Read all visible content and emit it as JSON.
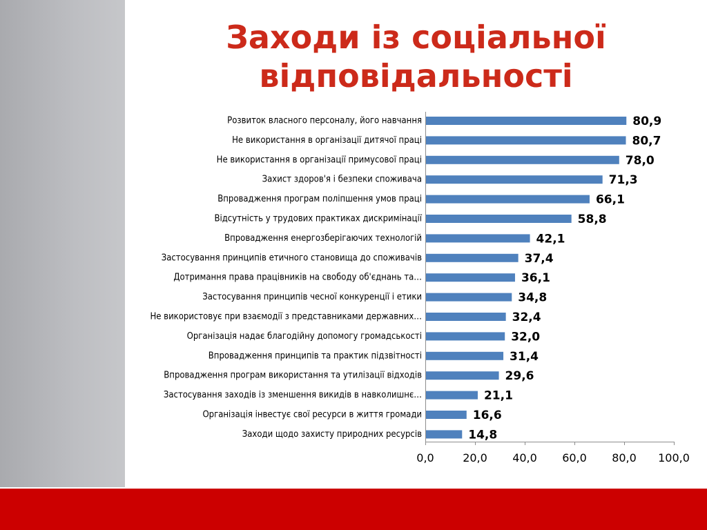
{
  "title": {
    "line1": "Заходи із соціальної",
    "line2": "відповідальності"
  },
  "colors": {
    "bar": "#4f81bd",
    "title": "#cc2a1a",
    "footer": "#cc0000"
  },
  "chart_data": {
    "type": "bar",
    "orientation": "horizontal",
    "categories": [
      "Розвиток власного персоналу, його навчання",
      "Не використання  в організації дитячої праці",
      "Не використання  в організації примусової праці",
      "Захист здоров'я і безпеки споживача",
      "Впровадження програм поліпшення  умов праці",
      "Відсутність у трудових практиках дискримінації",
      "Впровадження енергозберігаючих  технологій",
      "Застосування принципів етичного становища до споживачів",
      "Дотримання права працівників на свободу об'єднань та…",
      "Застосування  принципів чесної конкуренції і етики",
      "Не використовує при взаємодії з представниками державних…",
      "Організація  надає благодійну допомогу громадськості",
      "Впровадження  принципів та практик підзвітності",
      "Впровадження  програм використання  та утилізації відходів",
      "Застосування  заходів із зменшення  викидів в навколишнє…",
      "Організація  інвестує свої ресурси в життя громади",
      "Заходи щодо захисту природних ресурсів"
    ],
    "values": [
      80.9,
      80.7,
      78.0,
      71.3,
      66.1,
      58.8,
      42.1,
      37.4,
      36.1,
      34.8,
      32.4,
      32.0,
      31.4,
      29.6,
      21.1,
      16.6,
      14.8
    ],
    "value_labels": [
      "80,9",
      "80,7",
      "78,0",
      "71,3",
      "66,1",
      "58,8",
      "42,1",
      "37,4",
      "36,1",
      "34,8",
      "32,4",
      "32,0",
      "31,4",
      "29,6",
      "21,1",
      "16,6",
      "14,8"
    ],
    "xlim": [
      0,
      100
    ],
    "x_ticks": [
      0,
      20,
      40,
      60,
      80,
      100
    ],
    "x_tick_labels": [
      "0,0",
      "20,0",
      "40,0",
      "60,0",
      "80,0",
      "100,0"
    ],
    "grid": false,
    "legend": "none"
  }
}
